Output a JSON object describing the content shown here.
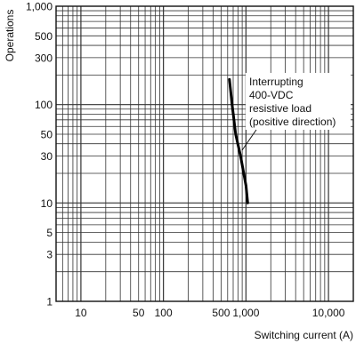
{
  "chart_data": {
    "type": "line",
    "xlabel": "Switching current (A)",
    "ylabel": "Operations",
    "xscale": "log",
    "yscale": "log",
    "xlim": [
      5,
      20000
    ],
    "ylim": [
      1,
      1000
    ],
    "grid": true,
    "x_tick_labels": [
      "10",
      "50",
      "100",
      "500",
      "1,000",
      "10,000"
    ],
    "x_tick_values": [
      10,
      50,
      100,
      500,
      1000,
      10000
    ],
    "y_tick_labels": [
      "1",
      "3",
      "5",
      "10",
      "30",
      "50",
      "100",
      "300",
      "500",
      "1,000"
    ],
    "y_tick_values": [
      1,
      3,
      5,
      10,
      30,
      50,
      100,
      300,
      500,
      1000
    ],
    "series": [
      {
        "x": [
          630,
          680,
          750,
          860,
          1000,
          1050
        ],
        "y": [
          180,
          100,
          50,
          30,
          15,
          10
        ]
      }
    ],
    "annotation": {
      "lines": [
        "Interrupting",
        "400-VDC",
        "resistive load",
        "(positive direction)"
      ]
    }
  }
}
